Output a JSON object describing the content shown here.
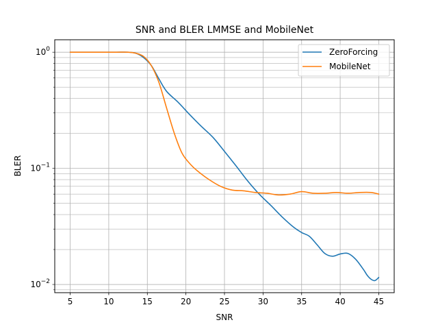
{
  "chart_data": {
    "type": "line",
    "title": "SNR and BLER LMMSE and MobileNet",
    "xlabel": "SNR",
    "ylabel": "BLER",
    "xscale": "linear",
    "yscale": "log",
    "xlim": [
      3,
      47
    ],
    "ylim": [
      0.0085,
      1.28
    ],
    "xticks": [
      5,
      10,
      15,
      20,
      25,
      30,
      35,
      40,
      45
    ],
    "xtick_labels": [
      "5",
      "10",
      "15",
      "20",
      "25",
      "30",
      "35",
      "40",
      "45"
    ],
    "yticks": [
      {
        "value": 1.0,
        "base": "10",
        "exp": "0"
      },
      {
        "value": 0.1,
        "base": "10",
        "exp": "−1"
      },
      {
        "value": 0.01,
        "base": "10",
        "exp": "−2"
      }
    ],
    "grid": true,
    "legend_position": "top-right",
    "series": [
      {
        "name": "ZeroForcing",
        "color": "#1f77b4",
        "x": [
          5,
          7,
          9,
          11,
          12.5,
          13.5,
          14.5,
          15.5,
          16.5,
          17.5,
          19,
          20.5,
          22,
          23.5,
          25,
          26.5,
          28,
          29.5,
          31,
          32.5,
          34,
          35,
          36,
          37,
          38,
          39,
          40,
          41,
          42,
          43,
          43.5,
          44,
          44.5,
          45
        ],
        "y": [
          1.0,
          1.0,
          1.0,
          1.0,
          1.0,
          0.98,
          0.9,
          0.77,
          0.59,
          0.46,
          0.37,
          0.29,
          0.23,
          0.185,
          0.14,
          0.105,
          0.078,
          0.06,
          0.048,
          0.038,
          0.031,
          0.028,
          0.026,
          0.022,
          0.0185,
          0.0175,
          0.0183,
          0.0185,
          0.0165,
          0.0135,
          0.012,
          0.0111,
          0.0108,
          0.0115
        ]
      },
      {
        "name": "MobileNet",
        "color": "#ff7f0e",
        "x": [
          5,
          7,
          9,
          11,
          12.5,
          13.5,
          14.5,
          15.5,
          16.5,
          17.5,
          18.5,
          19.5,
          20.5,
          21.5,
          23,
          24.5,
          26,
          27.5,
          29,
          30.5,
          32,
          33.5,
          35,
          36.5,
          38,
          39.5,
          41,
          42.5,
          44,
          45
        ],
        "y": [
          1.0,
          1.0,
          1.0,
          1.0,
          1.0,
          0.98,
          0.92,
          0.77,
          0.55,
          0.33,
          0.2,
          0.135,
          0.11,
          0.095,
          0.08,
          0.07,
          0.065,
          0.064,
          0.062,
          0.061,
          0.059,
          0.06,
          0.063,
          0.061,
          0.061,
          0.062,
          0.061,
          0.062,
          0.062,
          0.06
        ]
      }
    ]
  }
}
